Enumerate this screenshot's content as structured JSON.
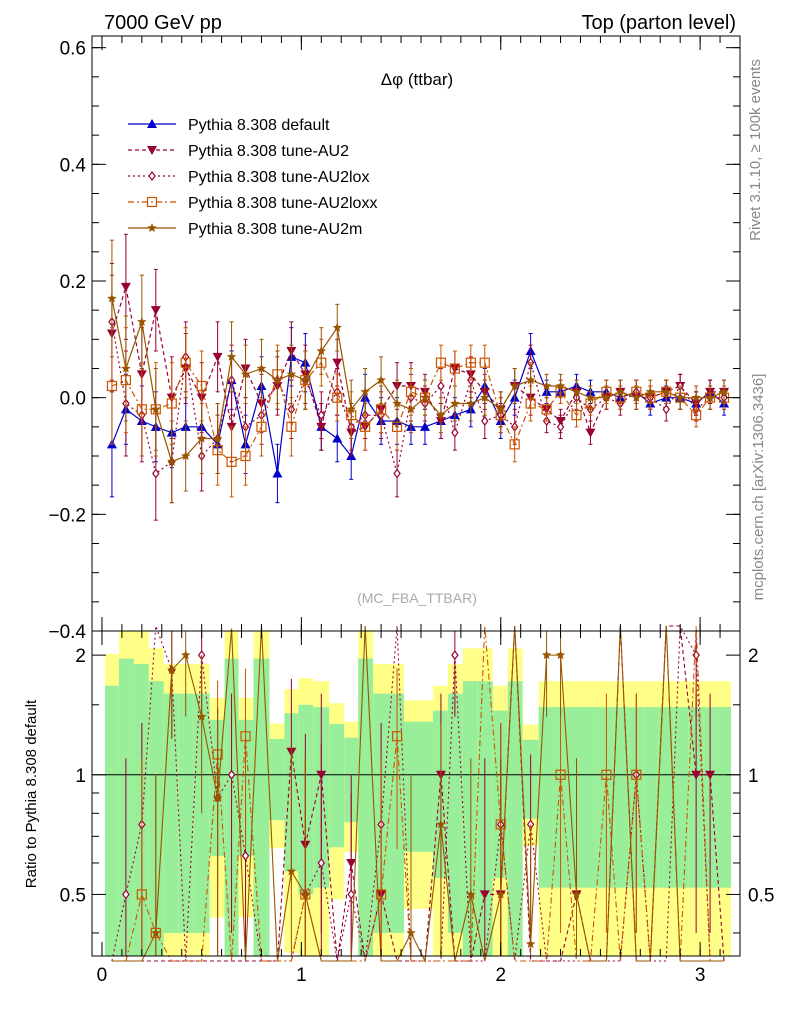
{
  "header": {
    "left": "7000 GeV pp",
    "right": "Top (parton level)"
  },
  "side": {
    "rivet": "Rivet 3.1.10, ≥ 100k events",
    "mcplots": "mcplots.cern.ch [arXiv:1306.3436]"
  },
  "chart_data": {
    "type": "line",
    "title": "Δφ (ttbar)",
    "watermark": "(MC_FBA_TTBAR)",
    "xlim": [
      -0.05,
      3.2
    ],
    "ylim": [
      -0.4,
      0.62
    ],
    "xticks": [
      0,
      1,
      2,
      3
    ],
    "yticks": [
      -0.4,
      -0.2,
      0,
      0.2,
      0.4,
      0.6
    ],
    "ratio": {
      "ylabel": "Ratio to Pythia 8.308 default",
      "ylim": [
        0.35,
        2.3
      ],
      "yticks": [
        0.5,
        1,
        2
      ],
      "reference": 1
    },
    "x": [
      0.05,
      0.12,
      0.2,
      0.27,
      0.35,
      0.42,
      0.5,
      0.58,
      0.65,
      0.72,
      0.8,
      0.88,
      0.95,
      1.02,
      1.1,
      1.18,
      1.25,
      1.32,
      1.4,
      1.48,
      1.55,
      1.62,
      1.7,
      1.77,
      1.85,
      1.92,
      2.0,
      2.07,
      2.15,
      2.23,
      2.3,
      2.38,
      2.45,
      2.53,
      2.6,
      2.68,
      2.75,
      2.83,
      2.9,
      2.98,
      3.05,
      3.12
    ],
    "series": [
      {
        "name": "Pythia 8.308 default",
        "color": "#0000cc",
        "marker": "triangle-up",
        "dash": "",
        "values": [
          -0.08,
          -0.02,
          -0.04,
          -0.05,
          -0.06,
          -0.05,
          -0.05,
          -0.08,
          0.03,
          -0.08,
          0.02,
          -0.13,
          0.07,
          0.06,
          -0.05,
          -0.07,
          -0.1,
          0.0,
          -0.04,
          -0.04,
          -0.05,
          -0.05,
          -0.04,
          -0.03,
          -0.02,
          0.02,
          -0.04,
          0.0,
          0.08,
          0.01,
          0.01,
          0.02,
          0.01,
          0.01,
          0.0,
          0.01,
          -0.01,
          0.0,
          0.0,
          -0.01,
          0.01,
          -0.01
        ],
        "errors": [
          0.09,
          0.06,
          0.06,
          0.06,
          0.06,
          0.05,
          0.05,
          0.05,
          0.05,
          0.05,
          0.05,
          0.05,
          0.05,
          0.05,
          0.04,
          0.04,
          0.04,
          0.04,
          0.04,
          0.04,
          0.03,
          0.03,
          0.03,
          0.03,
          0.03,
          0.03,
          0.03,
          0.03,
          0.03,
          0.02,
          0.02,
          0.02,
          0.02,
          0.02,
          0.02,
          0.02,
          0.02,
          0.02,
          0.02,
          0.02,
          0.02,
          0.02
        ]
      },
      {
        "name": "Pythia 8.308 tune-AU2",
        "color": "#990033",
        "marker": "triangle-down",
        "dash": "4,3",
        "values": [
          0.11,
          0.19,
          0.04,
          0.15,
          0.0,
          0.05,
          0.0,
          0.07,
          -0.05,
          0.05,
          -0.01,
          0.02,
          0.08,
          0.04,
          -0.05,
          0.06,
          -0.06,
          -0.05,
          -0.02,
          0.02,
          0.02,
          0.01,
          -0.04,
          0.05,
          0.04,
          0.01,
          -0.02,
          0.02,
          0.0,
          -0.02,
          -0.04,
          0.01,
          -0.06,
          0.0,
          0.01,
          0.0,
          0.0,
          0.01,
          0.02,
          -0.01,
          0.01,
          0.01
        ],
        "errors": [
          0.1,
          0.09,
          0.08,
          0.07,
          0.07,
          0.06,
          0.06,
          0.06,
          0.06,
          0.05,
          0.05,
          0.05,
          0.05,
          0.05,
          0.04,
          0.04,
          0.04,
          0.04,
          0.04,
          0.04,
          0.04,
          0.03,
          0.03,
          0.03,
          0.03,
          0.03,
          0.03,
          0.03,
          0.03,
          0.02,
          0.02,
          0.02,
          0.02,
          0.02,
          0.02,
          0.02,
          0.02,
          0.02,
          0.02,
          0.02,
          0.02,
          0.02
        ]
      },
      {
        "name": "Pythia 8.308 tune-AU2lox",
        "color": "#990033",
        "marker": "diamond",
        "dash": "2,3",
        "values": [
          0.13,
          -0.01,
          -0.03,
          -0.13,
          -0.11,
          0.07,
          -0.1,
          -0.07,
          0.03,
          -0.05,
          -0.03,
          0.03,
          -0.02,
          0.03,
          -0.03,
          0.01,
          -0.05,
          -0.03,
          -0.03,
          -0.13,
          0.0,
          -0.01,
          0.02,
          -0.06,
          0.03,
          -0.04,
          -0.03,
          -0.05,
          0.06,
          -0.04,
          -0.05,
          0.0,
          -0.02,
          0.0,
          -0.01,
          0.01,
          0.0,
          -0.02,
          0.02,
          -0.02,
          0.0,
          0.0
        ],
        "errors": [
          0.1,
          0.09,
          0.08,
          0.08,
          0.07,
          0.06,
          0.06,
          0.06,
          0.06,
          0.05,
          0.05,
          0.05,
          0.05,
          0.05,
          0.04,
          0.04,
          0.04,
          0.04,
          0.04,
          0.04,
          0.04,
          0.03,
          0.03,
          0.03,
          0.03,
          0.03,
          0.03,
          0.03,
          0.03,
          0.02,
          0.02,
          0.02,
          0.02,
          0.02,
          0.02,
          0.02,
          0.02,
          0.02,
          0.02,
          0.02,
          0.02,
          0.02
        ]
      },
      {
        "name": "Pythia 8.308 tune-AU2loxx",
        "color": "#cc5500",
        "marker": "square-open",
        "dash": "6,3,2,3",
        "values": [
          0.02,
          0.03,
          -0.02,
          -0.02,
          -0.01,
          0.06,
          0.02,
          -0.09,
          -0.11,
          -0.1,
          -0.05,
          0.04,
          -0.05,
          0.03,
          0.06,
          0.0,
          -0.03,
          -0.05,
          -0.02,
          -0.05,
          0.01,
          0.0,
          0.06,
          0.05,
          0.06,
          0.06,
          -0.03,
          -0.08,
          -0.01,
          -0.02,
          0.01,
          -0.03,
          -0.01,
          0.01,
          0.0,
          0.01,
          0.0,
          0.01,
          0.0,
          -0.03,
          0.0,
          0.0
        ],
        "errors": [
          0.1,
          0.09,
          0.08,
          0.08,
          0.07,
          0.06,
          0.06,
          0.06,
          0.06,
          0.05,
          0.05,
          0.05,
          0.05,
          0.05,
          0.04,
          0.04,
          0.04,
          0.04,
          0.04,
          0.04,
          0.04,
          0.03,
          0.03,
          0.03,
          0.03,
          0.03,
          0.03,
          0.03,
          0.03,
          0.02,
          0.02,
          0.02,
          0.02,
          0.02,
          0.02,
          0.02,
          0.02,
          0.02,
          0.02,
          0.02,
          0.02,
          0.02
        ]
      },
      {
        "name": "Pythia 8.308 tune-AU2m",
        "color": "#995500",
        "marker": "star",
        "dash": "",
        "values": [
          0.17,
          0.05,
          0.13,
          -0.02,
          -0.11,
          -0.1,
          -0.07,
          -0.07,
          0.07,
          0.04,
          0.05,
          0.03,
          0.04,
          0.03,
          0.08,
          0.12,
          -0.02,
          0.01,
          0.03,
          -0.01,
          -0.02,
          0.0,
          -0.03,
          -0.01,
          -0.01,
          0.0,
          -0.02,
          0.02,
          0.03,
          0.02,
          0.02,
          0.01,
          0.0,
          0.0,
          0.01,
          0.0,
          0.01,
          0.01,
          0.0,
          0.0,
          0.0,
          0.01
        ],
        "errors": [
          0.1,
          0.09,
          0.08,
          0.07,
          0.07,
          0.06,
          0.06,
          0.06,
          0.06,
          0.05,
          0.05,
          0.05,
          0.05,
          0.05,
          0.04,
          0.04,
          0.05,
          0.04,
          0.04,
          0.04,
          0.04,
          0.03,
          0.03,
          0.03,
          0.03,
          0.03,
          0.03,
          0.03,
          0.03,
          0.02,
          0.02,
          0.02,
          0.02,
          0.02,
          0.02,
          0.02,
          0.02,
          0.02,
          0.02,
          0.02,
          0.02,
          0.02
        ]
      }
    ]
  }
}
